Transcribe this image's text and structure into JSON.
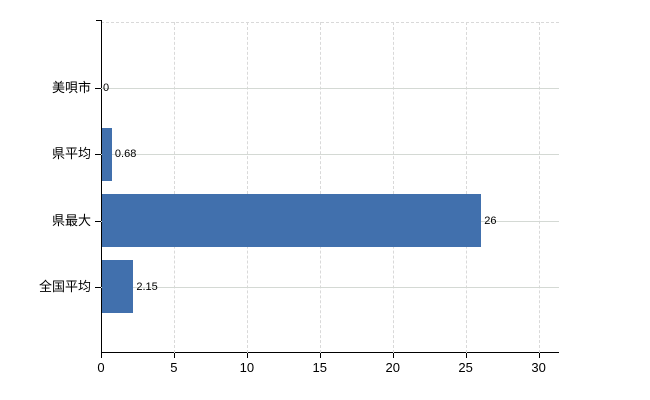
{
  "chart_data": {
    "type": "bar",
    "orientation": "horizontal",
    "title": "",
    "xlabel": "",
    "ylabel": "",
    "categories": [
      "美唄市",
      "県平均",
      "県最大",
      "全国平均"
    ],
    "values": [
      0,
      0.68,
      26,
      2.15
    ],
    "value_labels": [
      "0",
      "0.68",
      "26",
      "2.15"
    ],
    "x_ticks": [
      0,
      5,
      10,
      15,
      20,
      25,
      30
    ],
    "xlim": [
      0,
      31.4
    ],
    "grid": true,
    "legend": "none",
    "bar_color": "#4170ad",
    "vertical_gridline_color": "#d9d9d9",
    "horizontal_gridline_color": "#d4d9d4",
    "axis_color": "#000000",
    "text_color": "#000000",
    "background_color": "#ffffff"
  }
}
